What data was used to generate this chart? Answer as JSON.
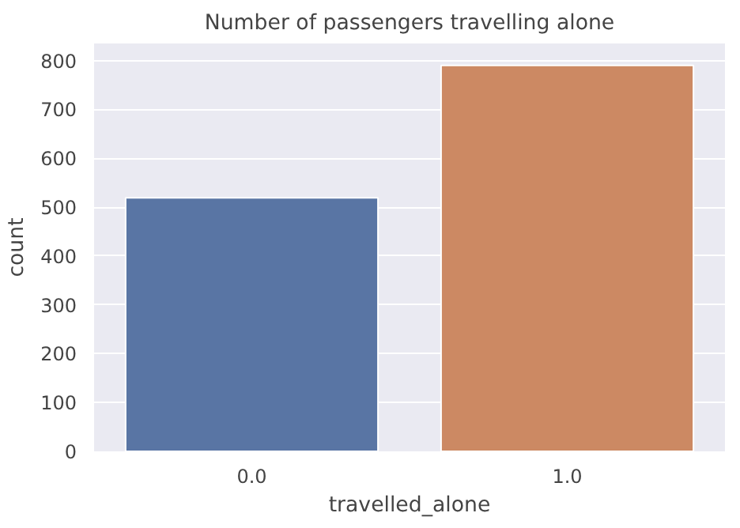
{
  "chart_data": {
    "type": "bar",
    "title": "Number of passengers travelling alone",
    "xlabel": "travelled_alone",
    "ylabel": "count",
    "categories": [
      "0.0",
      "1.0"
    ],
    "values": [
      519,
      790
    ],
    "colors": [
      "#5975a4",
      "#cc8963"
    ],
    "ylim": [
      0,
      835
    ],
    "yticks": [
      0,
      100,
      200,
      300,
      400,
      500,
      600,
      700,
      800
    ],
    "grid": "y"
  }
}
